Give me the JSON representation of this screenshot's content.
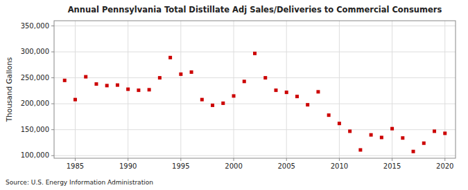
{
  "chart_data": {
    "type": "scatter",
    "title": "Annual Pennsylvania Total Distillate Adj Sales/Deliveries to Commercial Consumers",
    "ylabel": "Thousand Gallons",
    "annotations": [
      "Source: U.S. Energy Information Administration"
    ],
    "x": [
      1984,
      1985,
      1986,
      1987,
      1988,
      1989,
      1990,
      1991,
      1992,
      1993,
      1994,
      1995,
      1996,
      1997,
      1998,
      1999,
      2000,
      2001,
      2002,
      2003,
      2004,
      2005,
      2006,
      2007,
      2008,
      2009,
      2010,
      2011,
      2012,
      2013,
      2014,
      2015,
      2016,
      2017,
      2018,
      2019,
      2020
    ],
    "values": [
      245000,
      208000,
      252000,
      238000,
      235000,
      236000,
      228000,
      226000,
      227000,
      250000,
      289000,
      257000,
      261000,
      208000,
      197000,
      201000,
      215000,
      243000,
      297000,
      250000,
      226000,
      222000,
      214000,
      198000,
      223000,
      178000,
      162000,
      147000,
      111000,
      140000,
      135000,
      152000,
      134000,
      108000,
      124000,
      147000,
      143000
    ],
    "color": "#cc0000",
    "marker": "square",
    "xlim": [
      1983.0,
      2021.0
    ],
    "ylim": [
      95000,
      360000
    ],
    "xticks": [
      1985,
      1990,
      1995,
      2000,
      2005,
      2010,
      2015,
      2020
    ],
    "yticks": [
      {
        "value": 100000,
        "label": "100,000"
      },
      {
        "value": 150000,
        "label": "150,000"
      },
      {
        "value": 200000,
        "label": "200,000"
      },
      {
        "value": 250000,
        "label": "250,000"
      },
      {
        "value": 300000,
        "label": "300,000"
      },
      {
        "value": 350000,
        "label": "350,000"
      }
    ],
    "grid": true
  }
}
